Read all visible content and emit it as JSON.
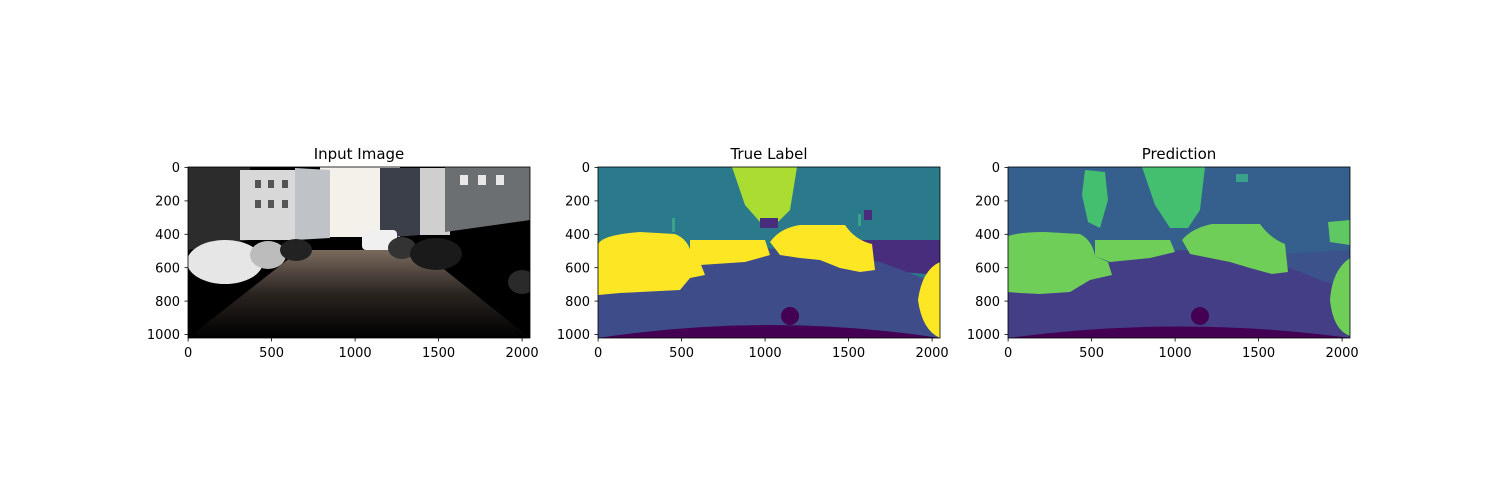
{
  "panels": [
    {
      "title": "Input Image",
      "kind": "photo",
      "x_ticks": [
        "0",
        "500",
        "1000",
        "1500",
        "2000"
      ],
      "y_ticks": [
        "0",
        "200",
        "400",
        "600",
        "800",
        "1000"
      ]
    },
    {
      "title": "True Label",
      "kind": "segmentation",
      "x_ticks": [
        "0",
        "500",
        "1000",
        "1500",
        "2000"
      ],
      "y_ticks": [
        "0",
        "200",
        "400",
        "600",
        "800",
        "1000"
      ]
    },
    {
      "title": "Prediction",
      "kind": "segmentation",
      "x_ticks": [
        "0",
        "500",
        "1000",
        "1500",
        "2000"
      ],
      "y_ticks": [
        "0",
        "200",
        "400",
        "600",
        "800",
        "1000"
      ]
    }
  ],
  "image_extent": {
    "x": [
      0,
      2048
    ],
    "y": [
      1024,
      0
    ]
  },
  "colors": {
    "true_label": {
      "background": "#2a7a8c",
      "road": "#3e4d8a",
      "ego_vehicle": "#440154",
      "sky": "#aadc32",
      "car": "#fde725",
      "sidewalk": "#472d7b"
    },
    "prediction": {
      "background": "#355f8d",
      "road": "#433e85",
      "ego_vehicle": "#440154",
      "sky": "#44bf70",
      "car": "#6ece58",
      "sidewalk": "#3b528b"
    }
  }
}
